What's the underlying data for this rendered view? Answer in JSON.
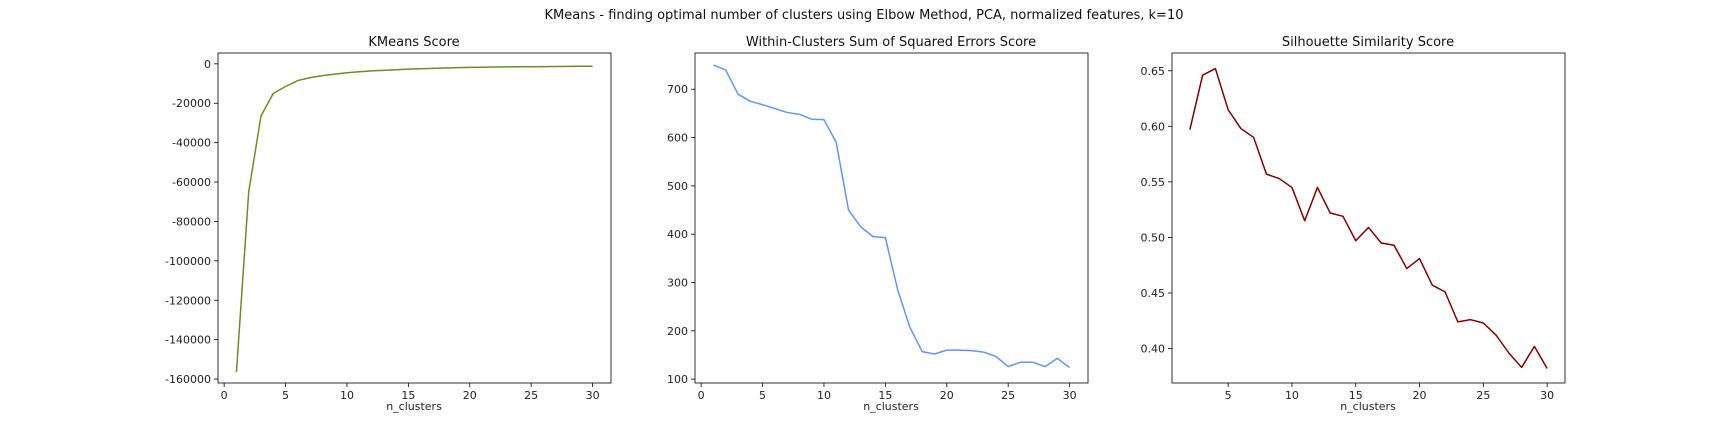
{
  "suptitle": "KMeans - finding optimal number of clusters using Elbow Method, PCA, normalized features, k=10",
  "chart_data": [
    {
      "type": "line",
      "title": "KMeans Score",
      "xlabel": "n_clusters",
      "ylabel": "",
      "color": "#6b8e23",
      "xlim": [
        -0.5,
        31.5
      ],
      "ylim": [
        -162000,
        5500
      ],
      "xticks": [
        0,
        5,
        10,
        15,
        20,
        25,
        30
      ],
      "yticks": [
        0,
        -20000,
        -40000,
        -60000,
        -80000,
        -100000,
        -120000,
        -140000,
        -160000
      ],
      "x": [
        1,
        2,
        3,
        4,
        5,
        6,
        7,
        8,
        9,
        10,
        11,
        12,
        13,
        14,
        15,
        16,
        17,
        18,
        19,
        20,
        21,
        22,
        23,
        24,
        25,
        26,
        27,
        28,
        29,
        30
      ],
      "series": [
        {
          "values": [
            -156500,
            -65000,
            -26500,
            -15000,
            -11500,
            -8500,
            -7000,
            -6000,
            -5200,
            -4500,
            -4000,
            -3600,
            -3300,
            -3000,
            -2700,
            -2500,
            -2300,
            -2100,
            -1900,
            -1800,
            -1700,
            -1600,
            -1550,
            -1500,
            -1450,
            -1400,
            -1350,
            -1300,
            -1250,
            -1200
          ]
        }
      ]
    },
    {
      "type": "line",
      "title": "Within-Clusters Sum of Squared Errors Score",
      "xlabel": "n_clusters",
      "ylabel": "",
      "color": "#6495ed",
      "xlim": [
        -0.5,
        31.5
      ],
      "ylim": [
        92,
        775
      ],
      "xticks": [
        0,
        5,
        10,
        15,
        20,
        25,
        30
      ],
      "yticks": [
        100,
        200,
        300,
        400,
        500,
        600,
        700
      ],
      "x": [
        1,
        2,
        3,
        4,
        5,
        6,
        7,
        8,
        9,
        10,
        11,
        12,
        13,
        14,
        15,
        16,
        17,
        18,
        19,
        20,
        21,
        22,
        23,
        24,
        25,
        26,
        27,
        28,
        29,
        30
      ],
      "series": [
        {
          "values": [
            750,
            740,
            690,
            675,
            668,
            660,
            652,
            648,
            638,
            637,
            590,
            450,
            415,
            395,
            393,
            285,
            207,
            157,
            152,
            160,
            160,
            159,
            156,
            147,
            126,
            135,
            135,
            126,
            143,
            124
          ]
        }
      ]
    },
    {
      "type": "line",
      "title": "Silhouette Similarity Score",
      "xlabel": "n_clusters",
      "ylabel": "",
      "color": "#800000",
      "xlim": [
        0.6,
        31.4
      ],
      "ylim": [
        0.369,
        0.666
      ],
      "xticks": [
        5,
        10,
        15,
        20,
        25,
        30
      ],
      "yticks": [
        0.4,
        0.45,
        0.5,
        0.55,
        0.6,
        0.65
      ],
      "tick_labels": [
        "0.40",
        "0.45",
        "0.50",
        "0.55",
        "0.60",
        "0.65"
      ],
      "x": [
        2,
        3,
        4,
        5,
        6,
        7,
        8,
        9,
        10,
        11,
        12,
        13,
        14,
        15,
        16,
        17,
        18,
        19,
        20,
        21,
        22,
        23,
        24,
        25,
        26,
        27,
        28,
        29,
        30
      ],
      "series": [
        {
          "values": [
            0.597,
            0.646,
            0.652,
            0.615,
            0.598,
            0.59,
            0.557,
            0.553,
            0.545,
            0.515,
            0.545,
            0.522,
            0.519,
            0.497,
            0.509,
            0.495,
            0.493,
            0.472,
            0.481,
            0.457,
            0.451,
            0.424,
            0.426,
            0.423,
            0.412,
            0.396,
            0.383,
            0.402,
            0.382
          ]
        }
      ]
    }
  ]
}
